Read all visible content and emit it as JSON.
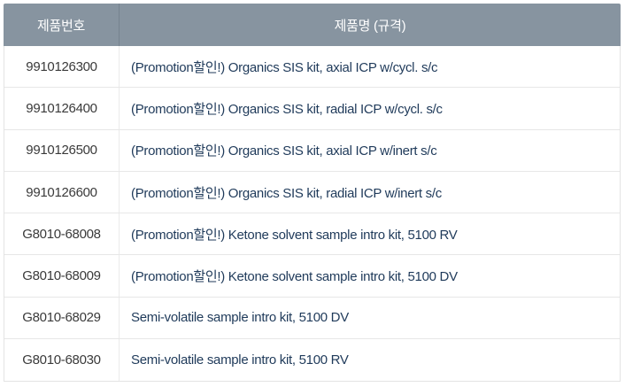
{
  "table": {
    "columns": {
      "product_no_label": "제품번호",
      "product_name_label": "제품명 (규격)"
    },
    "rows": [
      {
        "product_no": "9910126300",
        "product_name": "(Promotion할인!) Organics SIS kit, axial ICP w/cycl. s/c"
      },
      {
        "product_no": "9910126400",
        "product_name": "(Promotion할인!) Organics SIS kit, radial ICP w/cycl. s/c"
      },
      {
        "product_no": "9910126500",
        "product_name": "(Promotion할인!) Organics SIS kit, axial ICP w/inert s/c"
      },
      {
        "product_no": "9910126600",
        "product_name": "(Promotion할인!) Organics SIS kit, radial ICP w/inert s/c"
      },
      {
        "product_no": "G8010-68008",
        "product_name": "(Promotion할인!) Ketone solvent sample intro kit, 5100 RV"
      },
      {
        "product_no": "G8010-68009",
        "product_name": "(Promotion할인!) Ketone solvent sample intro kit, 5100 DV"
      },
      {
        "product_no": "G8010-68029",
        "product_name": "Semi-volatile sample intro kit, 5100 DV"
      },
      {
        "product_no": "G8010-68030",
        "product_name": "Semi-volatile sample intro kit, 5100 RV"
      }
    ]
  },
  "colors": {
    "header_bg": "#8794A0",
    "header_text": "#FFFFFF",
    "header_divider": "#76828E",
    "product_no_text": "#3A3A3A",
    "product_name_text": "#1F3A5A",
    "row_border": "#E7E7E7",
    "table_border": "#E3E3E3"
  }
}
